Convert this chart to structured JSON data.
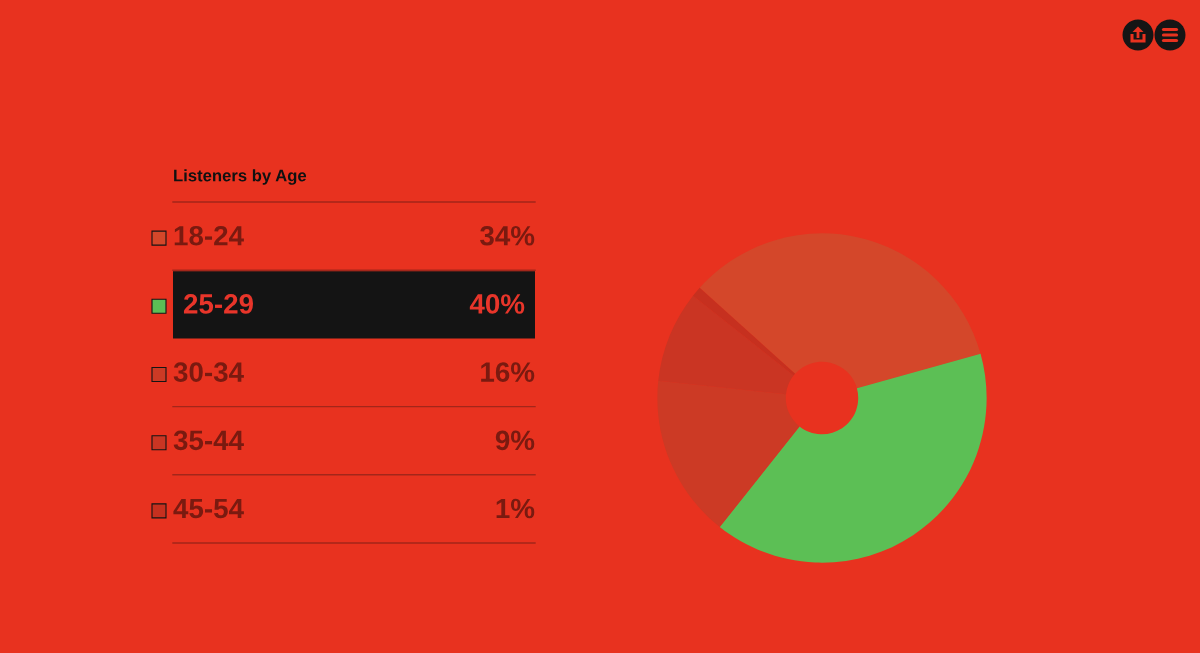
{
  "chart_data": {
    "type": "donut",
    "title": "Listeners by Age",
    "categories": [
      "18-24",
      "25-29",
      "30-34",
      "35-44",
      "45-54"
    ],
    "values": [
      34,
      40,
      16,
      9,
      1
    ],
    "value_labels": [
      "34%",
      "40%",
      "16%",
      "9%",
      "1%"
    ],
    "colors": [
      "#d4472a",
      "#5cbf55",
      "#cc3a25",
      "#ca3523",
      "#c6301f"
    ],
    "legend": "left"
  }
}
